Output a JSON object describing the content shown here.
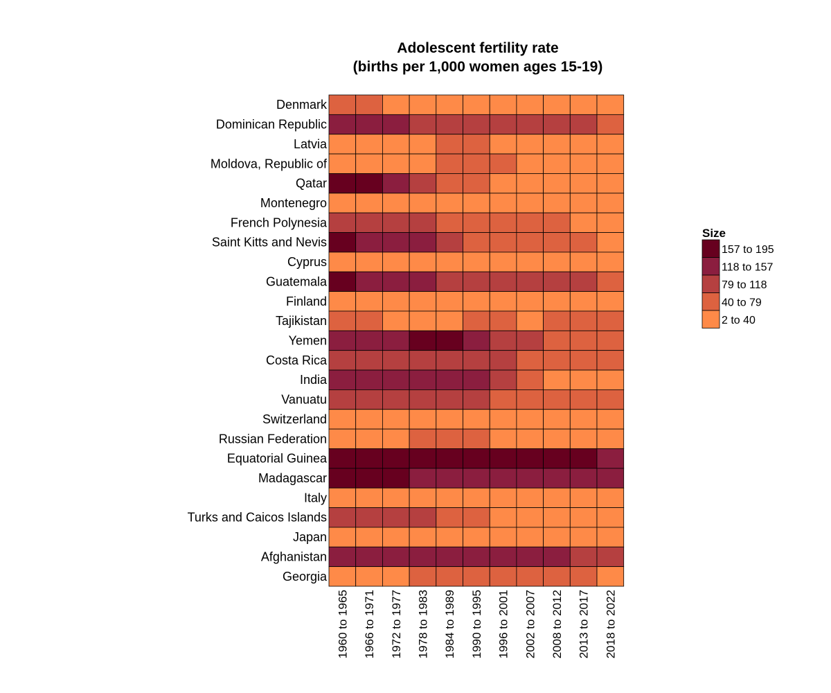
{
  "chart_data": {
    "type": "heatmap",
    "title": [
      "Adolescent fertility rate",
      "(births per 1,000 women ages 15-19)"
    ],
    "rows": [
      "Denmark",
      "Dominican Republic",
      "Latvia",
      "Moldova, Republic of",
      "Qatar",
      "Montenegro",
      "French Polynesia",
      "Saint Kitts and Nevis",
      "Cyprus",
      "Guatemala",
      "Finland",
      "Tajikistan",
      "Yemen",
      "Costa Rica",
      "India",
      "Vanuatu",
      "Switzerland",
      "Russian Federation",
      "Equatorial Guinea",
      "Madagascar",
      "Italy",
      "Turks and Caicos Islands",
      "Japan",
      "Afghanistan",
      "Georgia"
    ],
    "columns": [
      "1960 to 1965",
      "1966 to 1971",
      "1972 to 1977",
      "1978 to 1983",
      "1984 to 1989",
      "1990 to 1995",
      "1996 to 2001",
      "2002 to 2007",
      "2008 to 2012",
      "2013 to 2017",
      "2018 to 2022"
    ],
    "legend": {
      "title": "Size",
      "position": "right",
      "bins": [
        {
          "label": "157  to  195",
          "color": "#67001f"
        },
        {
          "label": "118  to  157",
          "color": "#8b1e3f"
        },
        {
          "label": "79  to  118",
          "color": "#b54040"
        },
        {
          "label": "40  to  79",
          "color": "#dd6240"
        },
        {
          "label": "2  to  40",
          "color": "#fe8a48"
        }
      ]
    },
    "bin_index_note": "0 = 157 to 195, 1 = 118 to 157, 2 = 79 to 118, 3 = 40 to 79, 4 = 2 to 40",
    "values": [
      [
        3,
        3,
        4,
        4,
        4,
        4,
        4,
        4,
        4,
        4,
        4
      ],
      [
        1,
        1,
        1,
        2,
        2,
        2,
        2,
        2,
        2,
        2,
        3
      ],
      [
        4,
        4,
        4,
        4,
        3,
        3,
        4,
        4,
        4,
        4,
        4
      ],
      [
        4,
        4,
        4,
        4,
        3,
        3,
        3,
        4,
        4,
        4,
        4
      ],
      [
        0,
        0,
        1,
        2,
        3,
        3,
        4,
        4,
        4,
        4,
        4
      ],
      [
        4,
        4,
        4,
        4,
        4,
        4,
        4,
        4,
        4,
        4,
        4
      ],
      [
        2,
        2,
        2,
        2,
        3,
        3,
        3,
        3,
        3,
        4,
        4
      ],
      [
        0,
        1,
        1,
        1,
        2,
        3,
        3,
        3,
        3,
        3,
        4
      ],
      [
        4,
        4,
        4,
        4,
        4,
        4,
        4,
        4,
        4,
        4,
        4
      ],
      [
        0,
        1,
        1,
        1,
        2,
        2,
        2,
        2,
        2,
        2,
        3
      ],
      [
        4,
        4,
        4,
        4,
        4,
        4,
        4,
        4,
        4,
        4,
        4
      ],
      [
        3,
        3,
        4,
        4,
        4,
        3,
        3,
        4,
        3,
        3,
        3
      ],
      [
        1,
        1,
        1,
        0,
        0,
        1,
        2,
        2,
        3,
        3,
        3
      ],
      [
        2,
        2,
        2,
        2,
        2,
        2,
        2,
        3,
        3,
        3,
        3
      ],
      [
        1,
        1,
        1,
        1,
        1,
        1,
        2,
        3,
        4,
        4,
        4
      ],
      [
        2,
        2,
        2,
        2,
        2,
        2,
        3,
        3,
        3,
        3,
        3
      ],
      [
        4,
        4,
        4,
        4,
        4,
        4,
        4,
        4,
        4,
        4,
        4
      ],
      [
        4,
        4,
        4,
        3,
        3,
        3,
        4,
        4,
        4,
        4,
        4
      ],
      [
        0,
        0,
        0,
        0,
        0,
        0,
        0,
        0,
        0,
        0,
        1
      ],
      [
        0,
        0,
        0,
        1,
        1,
        1,
        1,
        1,
        1,
        1,
        1
      ],
      [
        4,
        4,
        4,
        4,
        4,
        4,
        4,
        4,
        4,
        4,
        4
      ],
      [
        2,
        2,
        2,
        2,
        3,
        3,
        4,
        4,
        4,
        4,
        4
      ],
      [
        4,
        4,
        4,
        4,
        4,
        4,
        4,
        4,
        4,
        4,
        4
      ],
      [
        1,
        1,
        1,
        1,
        1,
        1,
        1,
        1,
        1,
        2,
        2
      ],
      [
        4,
        4,
        4,
        3,
        3,
        3,
        3,
        3,
        3,
        3,
        4
      ]
    ]
  }
}
